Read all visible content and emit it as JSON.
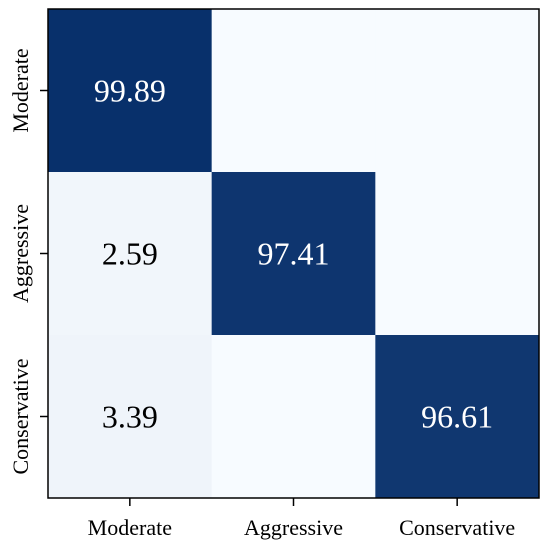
{
  "chart_data": {
    "type": "heatmap",
    "rows": [
      "Moderate",
      "Aggressive",
      "Conservative"
    ],
    "columns": [
      "Moderate",
      "Aggressive",
      "Conservative"
    ],
    "cells": [
      [
        {
          "value": 99.89,
          "label": "99.89"
        },
        {
          "value": 0,
          "label": ""
        },
        {
          "value": 0,
          "label": ""
        }
      ],
      [
        {
          "value": 2.59,
          "label": "2.59"
        },
        {
          "value": 97.41,
          "label": "97.41"
        },
        {
          "value": 0,
          "label": ""
        }
      ],
      [
        {
          "value": 3.39,
          "label": "3.39"
        },
        {
          "value": 0,
          "label": ""
        },
        {
          "value": 96.61,
          "label": "96.61"
        }
      ]
    ],
    "value_range": [
      0,
      100
    ],
    "colors": {
      "low": "#f7fbff",
      "high": "#08306b",
      "text_dark": "#000000",
      "text_light": "#ffffff",
      "frame": "#000000"
    }
  }
}
